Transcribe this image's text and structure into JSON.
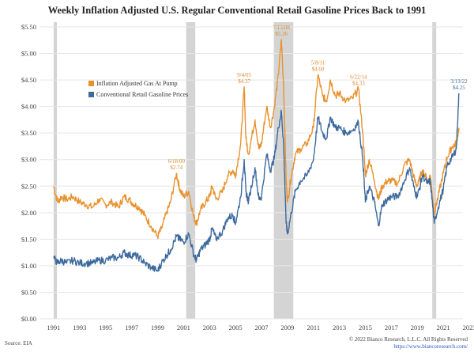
{
  "chart_data": {
    "type": "line",
    "title": "Weekly Inflation Adjusted U.S. Regular Conventional Retail Gasoline Prices Back to 1991",
    "xlabel": "",
    "ylabel": "",
    "xlim": [
      1991,
      2023
    ],
    "ylim": [
      0,
      5.5
    ],
    "x_ticks": [
      "1991",
      "1993",
      "1995",
      "1997",
      "1999",
      "2001",
      "2003",
      "2005",
      "2007",
      "2009",
      "2011",
      "2013",
      "2015",
      "2017",
      "2019",
      "2021",
      "2023"
    ],
    "y_ticks": [
      "$0.00",
      "$0.50",
      "$1.00",
      "$1.50",
      "$2.00",
      "$2.50",
      "$3.00",
      "$3.50",
      "$4.00",
      "$4.50",
      "$5.00",
      "$5.50"
    ],
    "recessions": [
      [
        1991.0,
        1991.25
      ],
      [
        2001.2,
        2001.9
      ],
      [
        2007.95,
        2009.45
      ],
      [
        2020.15,
        2020.45
      ]
    ],
    "legend": {
      "position": "upper-left"
    },
    "series": [
      {
        "name": "Inflation Adjusted Gas At Pump",
        "color": "#e8922e",
        "x": [
          1991.0,
          1991.3,
          1991.6,
          1992.0,
          1992.5,
          1993.0,
          1993.5,
          1994.0,
          1994.5,
          1995.0,
          1995.5,
          1996.0,
          1996.4,
          1996.8,
          1997.2,
          1997.6,
          1998.0,
          1998.5,
          1999.0,
          1999.3,
          1999.7,
          2000.0,
          2000.45,
          2000.7,
          2001.0,
          2001.4,
          2001.8,
          2002.0,
          2002.3,
          2002.7,
          2003.0,
          2003.2,
          2003.5,
          2004.0,
          2004.4,
          2004.8,
          2005.0,
          2005.4,
          2005.67,
          2005.8,
          2006.0,
          2006.5,
          2006.8,
          2007.0,
          2007.4,
          2007.7,
          2008.0,
          2008.3,
          2008.53,
          2008.7,
          2008.9,
          2009.0,
          2009.3,
          2009.6,
          2010.0,
          2010.5,
          2011.0,
          2011.35,
          2011.7,
          2012.0,
          2012.3,
          2012.7,
          2013.0,
          2013.5,
          2014.0,
          2014.47,
          2014.8,
          2015.0,
          2015.3,
          2015.7,
          2016.0,
          2016.3,
          2016.7,
          2017.0,
          2017.5,
          2018.0,
          2018.4,
          2018.8,
          2019.0,
          2019.4,
          2019.8,
          2020.0,
          2020.3,
          2020.6,
          2021.0,
          2021.3,
          2021.7,
          2022.0,
          2022.2
        ],
        "values": [
          2.5,
          2.2,
          2.3,
          2.25,
          2.3,
          2.2,
          2.15,
          2.1,
          2.25,
          2.15,
          2.2,
          2.1,
          2.3,
          2.25,
          2.15,
          2.1,
          1.95,
          1.75,
          1.55,
          1.7,
          2.0,
          2.2,
          2.74,
          2.45,
          2.3,
          2.4,
          1.9,
          1.8,
          2.05,
          2.2,
          2.3,
          2.5,
          2.25,
          2.4,
          2.7,
          2.8,
          2.7,
          3.3,
          4.37,
          3.4,
          3.1,
          3.75,
          3.2,
          3.3,
          4.0,
          3.6,
          4.0,
          4.6,
          5.26,
          4.4,
          2.6,
          2.2,
          2.7,
          3.1,
          3.2,
          3.3,
          3.6,
          4.6,
          4.2,
          4.1,
          4.5,
          4.2,
          4.25,
          4.1,
          4.15,
          4.33,
          3.5,
          2.7,
          3.0,
          2.6,
          2.25,
          2.5,
          2.6,
          2.6,
          2.55,
          2.9,
          3.0,
          2.6,
          2.5,
          2.8,
          2.6,
          2.7,
          2.0,
          2.3,
          2.75,
          3.05,
          3.25,
          3.3,
          3.6
        ]
      },
      {
        "name": "Conventional Retail Gasoline Prices",
        "color": "#3d6a9e",
        "x": [
          1991.0,
          1991.3,
          1991.6,
          1992.0,
          1992.5,
          1993.0,
          1993.5,
          1994.0,
          1994.5,
          1995.0,
          1995.5,
          1996.0,
          1996.4,
          1996.8,
          1997.2,
          1997.6,
          1998.0,
          1998.5,
          1999.0,
          1999.3,
          1999.7,
          2000.0,
          2000.45,
          2000.7,
          2001.0,
          2001.4,
          2001.8,
          2002.0,
          2002.3,
          2002.7,
          2003.0,
          2003.2,
          2003.5,
          2004.0,
          2004.4,
          2004.8,
          2005.0,
          2005.4,
          2005.67,
          2005.8,
          2006.0,
          2006.5,
          2006.8,
          2007.0,
          2007.4,
          2007.7,
          2008.0,
          2008.3,
          2008.53,
          2008.7,
          2008.9,
          2009.0,
          2009.3,
          2009.6,
          2010.0,
          2010.5,
          2011.0,
          2011.35,
          2011.7,
          2012.0,
          2012.3,
          2012.7,
          2013.0,
          2013.5,
          2014.0,
          2014.47,
          2014.8,
          2015.0,
          2015.3,
          2015.7,
          2016.0,
          2016.3,
          2016.7,
          2017.0,
          2017.5,
          2018.0,
          2018.4,
          2018.8,
          2019.0,
          2019.4,
          2019.8,
          2020.0,
          2020.3,
          2020.6,
          2021.0,
          2021.3,
          2021.7,
          2022.0,
          2022.2
        ],
        "values": [
          1.15,
          1.05,
          1.1,
          1.05,
          1.1,
          1.05,
          1.05,
          1.05,
          1.1,
          1.1,
          1.15,
          1.15,
          1.25,
          1.2,
          1.2,
          1.15,
          1.05,
          0.97,
          0.9,
          1.05,
          1.2,
          1.3,
          1.55,
          1.5,
          1.45,
          1.6,
          1.2,
          1.1,
          1.3,
          1.4,
          1.5,
          1.7,
          1.5,
          1.65,
          1.9,
          1.95,
          1.8,
          2.3,
          3.0,
          2.4,
          2.2,
          2.85,
          2.25,
          2.3,
          3.1,
          2.8,
          3.05,
          3.6,
          3.9,
          3.3,
          1.8,
          1.6,
          2.0,
          2.4,
          2.6,
          2.7,
          3.0,
          3.8,
          3.5,
          3.4,
          3.8,
          3.6,
          3.6,
          3.5,
          3.55,
          3.7,
          3.0,
          2.2,
          2.5,
          2.2,
          1.75,
          2.15,
          2.25,
          2.3,
          2.3,
          2.6,
          2.85,
          2.4,
          2.3,
          2.7,
          2.55,
          2.6,
          1.8,
          2.1,
          2.45,
          2.9,
          3.05,
          3.2,
          4.25
        ]
      }
    ],
    "annotations": [
      {
        "date": "6/18/00",
        "value": "$2.74",
        "series": 0,
        "x": 2000.45,
        "y": 2.74
      },
      {
        "date": "9/4/05",
        "value": "$4.37",
        "series": 0,
        "x": 2005.67,
        "y": 4.37
      },
      {
        "date": "7/13/08",
        "value": "$5.26",
        "series": 0,
        "x": 2008.53,
        "y": 5.26
      },
      {
        "date": "5/8/11",
        "value": "$4.60",
        "series": 0,
        "x": 2011.35,
        "y": 4.6
      },
      {
        "date": "6/22/14",
        "value": "$4.33",
        "series": 0,
        "x": 2014.47,
        "y": 4.33
      },
      {
        "date": "3/13/22",
        "value": "$4.25",
        "series": 1,
        "x": 2022.2,
        "y": 4.25
      }
    ]
  },
  "footer": {
    "source": "Source: EIA",
    "copyright": "© 2022 Bianco Research, L.L.C. All Rights Reserved",
    "url": "https://www.biancoresearch.com/"
  }
}
